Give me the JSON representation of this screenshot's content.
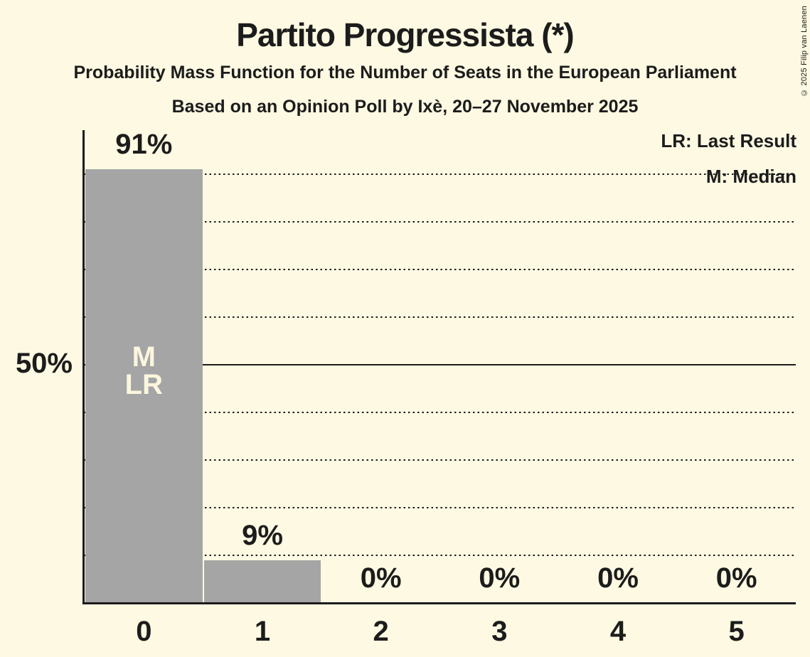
{
  "title": "Partito Progressista (*)",
  "subtitle1": "Probability Mass Function for the Number of Seats in the European Parliament",
  "subtitle2": "Based on an Opinion Poll by Ixè, 20–27 November 2025",
  "copyright": "© 2025 Filip van Laenen",
  "legend": {
    "lr": "LR: Last Result",
    "m": "M: Median"
  },
  "y_axis": {
    "label": "50%",
    "at_pct": 50
  },
  "colors": {
    "background": "#FDF9E2",
    "bar": "#A5A5A5",
    "text": "#1C1C1C",
    "bar_annotation_text": "#FBF6DF"
  },
  "chart_data": {
    "type": "bar",
    "title": "Partito Progressista (*)",
    "subtitle": "Probability Mass Function for the Number of Seats in the European Parliament",
    "source_note": "Based on an Opinion Poll by Ixè, 20–27 November 2025",
    "categories": [
      "0",
      "1",
      "2",
      "3",
      "4",
      "5"
    ],
    "values": [
      91,
      9,
      0,
      0,
      0,
      0
    ],
    "value_labels": [
      "91%",
      "9%",
      "0%",
      "0%",
      "0%",
      "0%"
    ],
    "ylim": [
      0,
      100
    ],
    "gridlines_pct": [
      10,
      20,
      30,
      40,
      50,
      60,
      70,
      80,
      90
    ],
    "solid_gridline_pct": 50,
    "grid": true,
    "legend_position": "top-right",
    "legend_entries": [
      "LR: Last Result",
      "M: Median"
    ],
    "annotations": [
      {
        "category_index": 0,
        "lines": [
          "M",
          "LR"
        ]
      }
    ],
    "median_seats": 0,
    "last_result_seats": 0
  }
}
